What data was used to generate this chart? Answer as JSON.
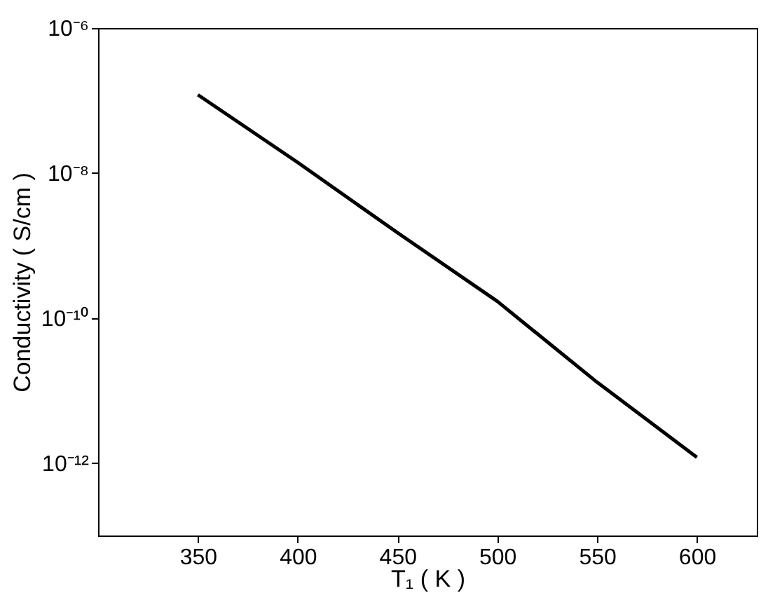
{
  "chart_data": {
    "type": "line",
    "xlabel": "T₁ ( K )",
    "ylabel": "Conductivity ( S/cm )",
    "x": [
      350,
      400,
      450,
      500,
      550,
      600
    ],
    "series": [
      {
        "color": "#000000",
        "values": [
          1.2e-07,
          1.4e-08,
          1.5e-09,
          1.7e-10,
          1.3e-11,
          1.2e-12
        ]
      }
    ],
    "xlim": [
      300,
      630
    ],
    "xticks": [
      350,
      400,
      450,
      500,
      550,
      600
    ],
    "ylim": [
      1e-13,
      1e-06
    ],
    "yticks": [
      {
        "value": 1e-06,
        "label": "10⁻⁶"
      },
      {
        "value": 1e-08,
        "label": "10⁻⁸"
      },
      {
        "value": 1e-10,
        "label": "10⁻¹⁰"
      },
      {
        "value": 1e-12,
        "label": "10⁻¹²"
      }
    ],
    "log": "y",
    "grid": false,
    "legend": false,
    "marker": "none",
    "line_style": "solid"
  }
}
